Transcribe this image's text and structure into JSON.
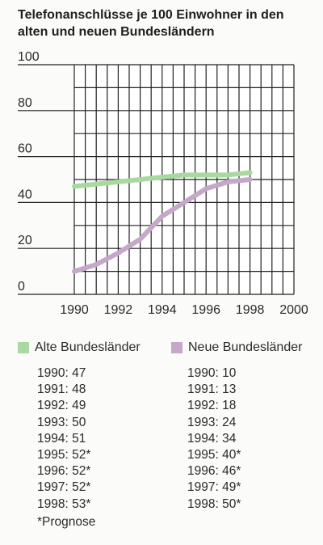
{
  "chart_data": {
    "type": "line",
    "title": [
      "Telefonanschlüsse je 100 Einwohner in den",
      "alten und neuen Bundesländern"
    ],
    "x": [
      1990,
      1991,
      1992,
      1993,
      1994,
      1995,
      1996,
      1997,
      1998
    ],
    "xlim": [
      1990,
      2000
    ],
    "ylim": [
      0,
      100
    ],
    "xticks": [
      "1990",
      "1992",
      "1994",
      "1996",
      "1998",
      "2000"
    ],
    "yticks": [
      "0",
      "20",
      "40",
      "60",
      "80",
      "100"
    ],
    "grid": true,
    "series": [
      {
        "name": "Alte Bundesländer",
        "color": "#a9d9a0",
        "values": [
          47,
          48,
          49,
          50,
          51,
          52,
          52,
          52,
          53
        ]
      },
      {
        "name": "Neue Bundesländer",
        "color": "#c5a7c9",
        "values": [
          10,
          13,
          18,
          24,
          34,
          40,
          46,
          49,
          50
        ]
      }
    ]
  },
  "table": {
    "alte": [
      "1990: 47",
      "1991: 48",
      "1992: 49",
      "1993: 50",
      "1994: 51",
      "1995: 52*",
      "1996: 52*",
      "1997: 52*",
      "1998: 53*"
    ],
    "neue": [
      "1990: 10",
      "1991: 13",
      "1992: 18",
      "1993: 24",
      "1994: 34",
      "1995: 40*",
      "1996: 46*",
      "1997: 49*",
      "1998: 50*"
    ]
  },
  "footnote": "*Prognose"
}
